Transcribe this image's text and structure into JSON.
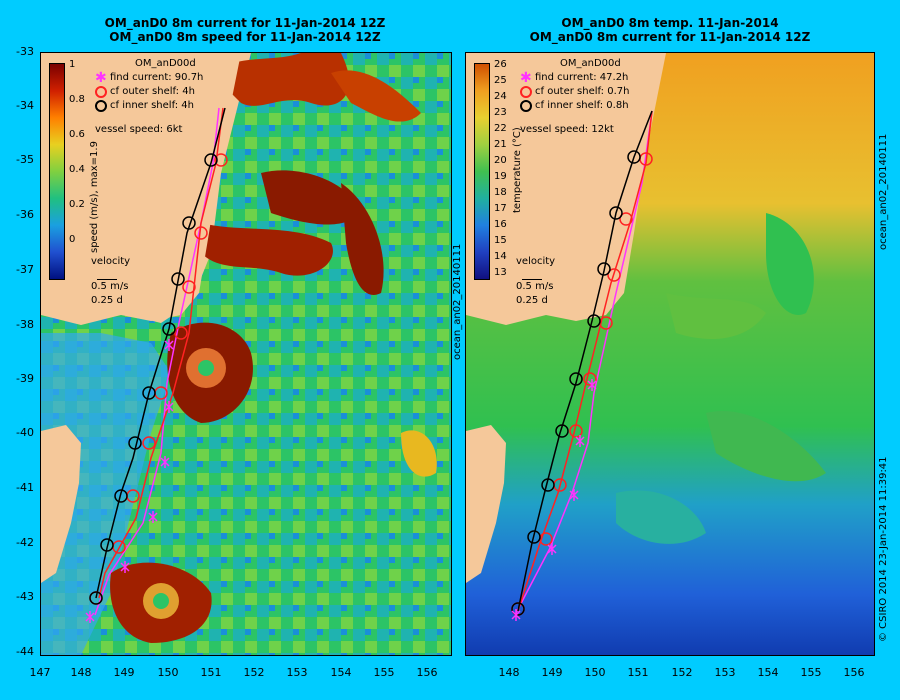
{
  "left_panel": {
    "title1": "OM_anD0 8m current for 11-Jan-2014 12Z",
    "title2": "OM_anD0 8m speed for 11-Jan-2014 12Z",
    "model": "OM_anD00d",
    "legend": [
      "find current: 90.7h",
      "cf outer shelf: 4h",
      "cf inner shelf: 4h"
    ],
    "vessel": "vessel speed: 6kt",
    "colorbar_label": "speed (m/s), max=1.9",
    "colorbar_ticks": [
      "1",
      "0.8",
      "0.6",
      "0.4",
      "0.2",
      "0"
    ],
    "velocity": [
      "velocity",
      "0.5 m/s",
      "0.25 d"
    ]
  },
  "right_panel": {
    "title1": "OM_anD0 8m temp. 11-Jan-2014",
    "title2": "OM_anD0 8m current for 11-Jan-2014 12Z",
    "model": "OM_anD00d",
    "legend": [
      "find current: 47.2h",
      "cf outer shelf: 0.7h",
      "cf inner shelf: 0.8h"
    ],
    "vessel": "vessel speed: 12kt",
    "colorbar_label": "temperature (°C)",
    "colorbar_ticks": [
      "26",
      "25",
      "24",
      "23",
      "22",
      "21",
      "20",
      "19",
      "18",
      "17",
      "16",
      "15",
      "14",
      "13"
    ],
    "velocity": [
      "velocity",
      "0.5 m/s",
      "0.25 d"
    ]
  },
  "side_left": "ocean_an02_20140111",
  "side_right_top": "ocean_an02_20140111",
  "side_right_bottom": "© CSIRO 2014   23-Jan-2014 11:39:41",
  "y_ticks": [
    "-33",
    "-34",
    "-35",
    "-36",
    "-37",
    "-38",
    "-39",
    "-40",
    "-41",
    "-42",
    "-43",
    "-44"
  ],
  "x_ticks_left": [
    "147",
    "148",
    "149",
    "150",
    "151",
    "152",
    "153",
    "154",
    "155",
    "156"
  ],
  "x_ticks_right": [
    "148",
    "149",
    "150",
    "151",
    "152",
    "153",
    "154",
    "155",
    "156"
  ],
  "colors": {
    "background": "#00ccff",
    "land": "#f5c89a",
    "find": "#ff33ff",
    "outer": "#ff2222",
    "inner": "#000000"
  }
}
